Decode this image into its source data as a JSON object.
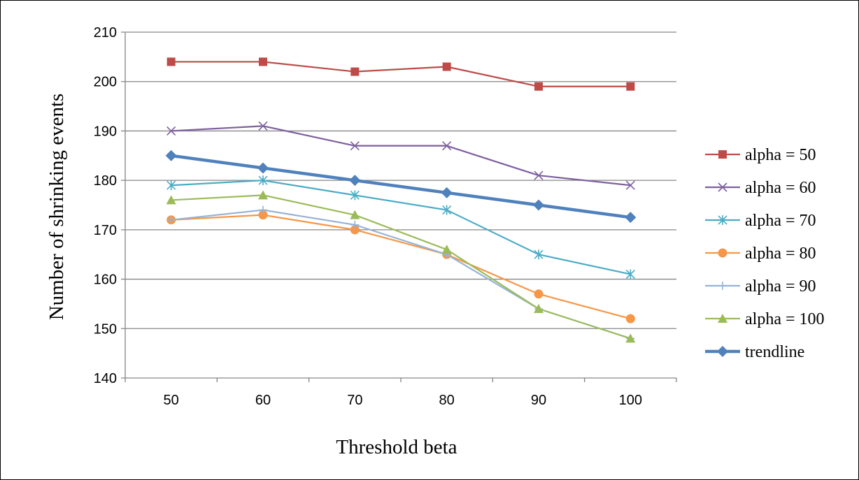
{
  "chart_data": {
    "type": "line",
    "title": "",
    "xlabel": "Threshold beta",
    "ylabel": "Number of shrinking events",
    "categories": [
      "50",
      "60",
      "70",
      "80",
      "90",
      "100"
    ],
    "ylim": [
      140,
      210
    ],
    "yticks": [
      140,
      150,
      160,
      170,
      180,
      190,
      200,
      210
    ],
    "grid": "horizontal",
    "legend_position": "right",
    "series": [
      {
        "name": "alpha = 50",
        "values": [
          204,
          204,
          202,
          203,
          199,
          199
        ],
        "color": "#BE4B48",
        "marker": "square"
      },
      {
        "name": "alpha = 60",
        "values": [
          190,
          191,
          187,
          187,
          181,
          179
        ],
        "color": "#7D60A0",
        "marker": "x"
      },
      {
        "name": "alpha = 70",
        "values": [
          179,
          180,
          177,
          174,
          165,
          161
        ],
        "color": "#4BACC6",
        "marker": "star"
      },
      {
        "name": "alpha = 80",
        "values": [
          172,
          173,
          170,
          165,
          157,
          152
        ],
        "color": "#F79646",
        "marker": "circle"
      },
      {
        "name": "alpha = 90",
        "values": [
          172,
          174,
          171,
          165,
          154,
          148
        ],
        "color": "#95B3D7",
        "marker": "plus"
      },
      {
        "name": "alpha = 100",
        "values": [
          176,
          177,
          173,
          166,
          154,
          148
        ],
        "color": "#9BBB59",
        "marker": "triangle"
      },
      {
        "name": "trendline",
        "values": [
          185,
          182.5,
          180,
          177.5,
          175,
          172.5
        ],
        "color": "#4F81BD",
        "marker": "diamond",
        "bold": true
      }
    ]
  }
}
